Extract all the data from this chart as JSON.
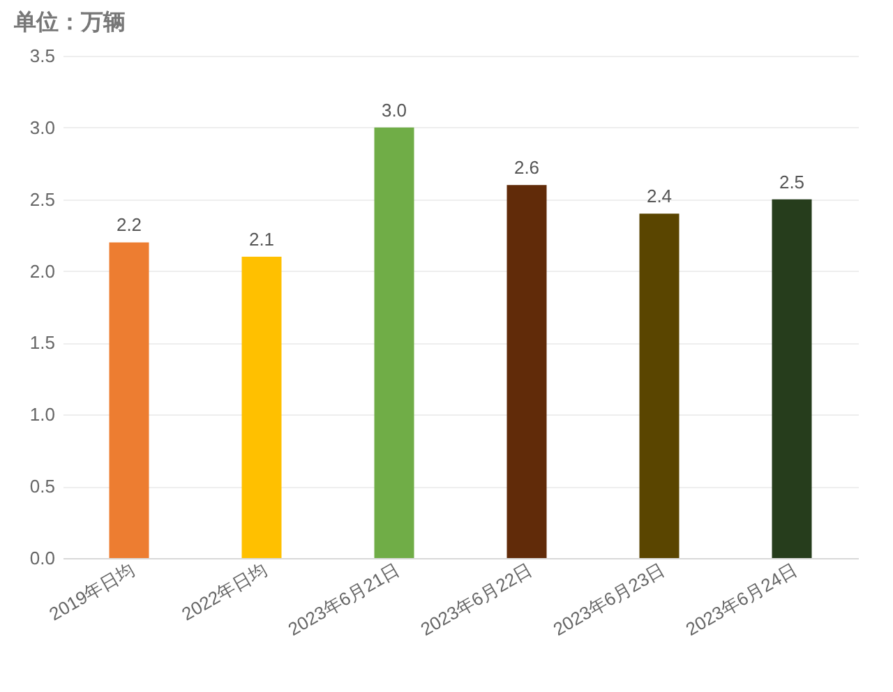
{
  "chart_data": {
    "type": "bar",
    "title": "单位：万辆",
    "categories": [
      "2019年日均",
      "2022年日均",
      "2023年6月21日",
      "2023年6月22日",
      "2023年6月23日",
      "2023年6月24日"
    ],
    "values": [
      2.2,
      2.1,
      3.0,
      2.6,
      2.4,
      2.5
    ],
    "value_labels": [
      "2.2",
      "2.1",
      "3.0",
      "2.6",
      "2.4",
      "2.5"
    ],
    "colors": [
      "#ed7d31",
      "#ffc000",
      "#70ad47",
      "#612b09",
      "#5a4500",
      "#263d1c"
    ],
    "ylim": [
      0,
      3.5
    ],
    "yticks": [
      {
        "value": 0,
        "label": "0.0"
      },
      0.5,
      {
        "value": 1,
        "label": "1.0"
      },
      1.5,
      {
        "value": 2,
        "label": "2.0"
      },
      2.5,
      {
        "value": 3,
        "label": "3.0"
      },
      3.5
    ],
    "grid": "y"
  }
}
